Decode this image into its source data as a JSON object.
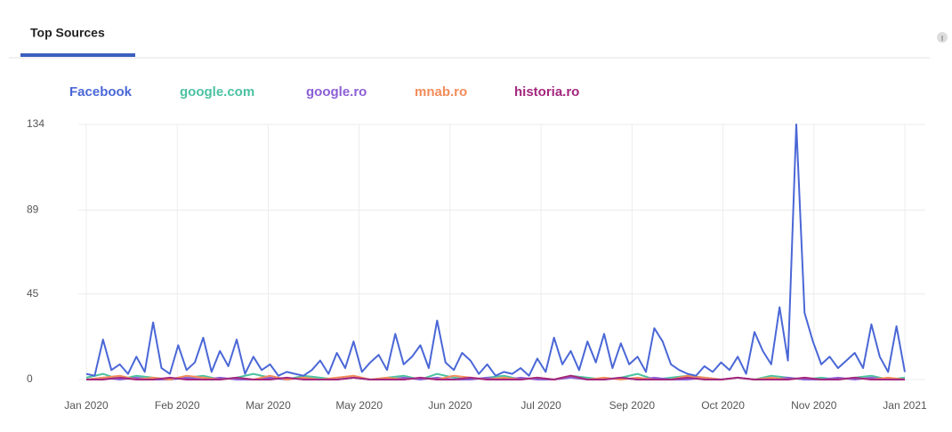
{
  "header": {
    "title": "Top Sources"
  },
  "chart_data": {
    "type": "line",
    "series": [
      {
        "name": "Facebook",
        "color": "#4a67d6",
        "values": [
          3,
          2,
          21,
          5,
          8,
          3,
          12,
          4,
          30,
          6,
          3,
          18,
          5,
          9,
          22,
          4,
          15,
          7,
          21,
          3,
          12,
          5,
          8,
          2,
          4,
          3,
          2,
          5,
          10,
          3,
          14,
          6,
          20,
          4,
          9,
          13,
          5,
          24,
          8,
          12,
          18,
          6,
          31,
          9,
          5,
          14,
          10,
          3,
          8,
          2,
          4,
          3,
          6,
          2,
          11,
          4,
          22,
          8,
          15,
          5,
          20,
          9,
          24,
          6,
          19,
          8,
          12,
          4,
          27,
          20,
          8,
          5,
          3,
          2,
          7,
          4,
          9,
          5,
          12,
          3,
          25,
          15,
          8,
          38,
          10,
          134,
          35,
          20,
          8,
          12,
          6,
          10,
          14,
          6,
          29,
          12,
          4,
          28,
          4
        ]
      },
      {
        "name": "google.com",
        "color": "#4cc2a0",
        "values": [
          1,
          3,
          0,
          2,
          1,
          0,
          1,
          2,
          0,
          1,
          3,
          1,
          0,
          2,
          1,
          0,
          1,
          0,
          1,
          2,
          0,
          3,
          1,
          0,
          1,
          2,
          0,
          1,
          0,
          2,
          1,
          0,
          1,
          3,
          0,
          1,
          2,
          1,
          0,
          1,
          0,
          2,
          1,
          0,
          1,
          0,
          1,
          2,
          0,
          1
        ]
      },
      {
        "name": "google.ro",
        "color": "#8c5fd6",
        "values": [
          0,
          1,
          0,
          1,
          0,
          0,
          1,
          0,
          1,
          0,
          0,
          1,
          0,
          1,
          0,
          0,
          1,
          0,
          0,
          1,
          0,
          1,
          0,
          0,
          1,
          0,
          1,
          0,
          0,
          1,
          0,
          0,
          1,
          0,
          1,
          0,
          0,
          1,
          0,
          1,
          0,
          0,
          1,
          0,
          0,
          1,
          0,
          1,
          0,
          0
        ]
      },
      {
        "name": "mnab.ro",
        "color": "#f28c5a",
        "values": [
          0,
          1,
          2,
          0,
          1,
          0,
          2,
          1,
          0,
          1,
          0,
          2,
          0,
          1,
          0,
          1,
          2,
          0,
          1,
          0,
          1,
          0,
          2,
          1,
          0,
          1,
          0,
          1,
          0,
          2,
          0,
          1,
          0,
          1,
          0,
          0,
          2,
          1,
          0,
          1,
          0,
          1,
          0,
          1,
          0,
          0,
          1,
          0,
          1,
          0
        ]
      },
      {
        "name": "historia.ro",
        "color": "#a3277f",
        "values": [
          0,
          0,
          1,
          0,
          0,
          1,
          0,
          0,
          0,
          1,
          0,
          0,
          1,
          0,
          0,
          0,
          1,
          0,
          0,
          0,
          1,
          0,
          0,
          1,
          0,
          0,
          0,
          1,
          0,
          2,
          0,
          0,
          1,
          0,
          0,
          0,
          1,
          0,
          0,
          1,
          0,
          0,
          0,
          1,
          0,
          0,
          1,
          0,
          0,
          0
        ]
      }
    ],
    "xticks": [
      "Jan 2020",
      "Feb 2020",
      "Mar 2020",
      "May 2020",
      "Jun 2020",
      "Jul 2020",
      "Sep 2020",
      "Oct 2020",
      "Nov 2020",
      "Jan 2021"
    ],
    "ylim": [
      0,
      134
    ],
    "yticks": [
      0,
      45,
      89,
      134
    ],
    "grid": true
  }
}
